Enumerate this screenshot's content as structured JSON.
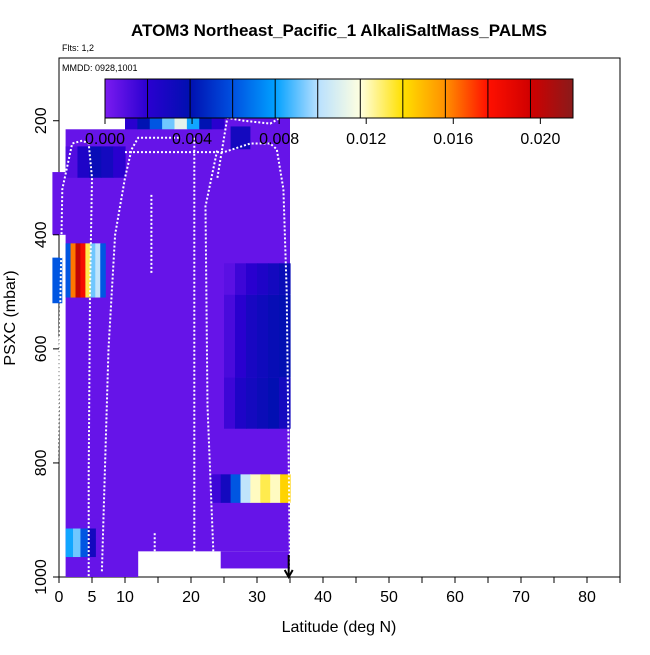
{
  "chart_data": {
    "type": "heatmap",
    "title": "ATOM3 Northeast_Pacific_1 AlkaliSaltMass_PALMS",
    "flights_label": "Flts: 1,2",
    "mmdd_label": "MMDD: 0928,1001",
    "xlabel": "Latitude (deg N)",
    "ylabel": "PSXC (mbar)",
    "xlim": [
      0,
      85
    ],
    "ylim": [
      1000,
      90
    ],
    "y_reversed": true,
    "x_ticks": [
      0,
      5,
      10,
      20,
      30,
      40,
      50,
      60,
      70,
      80
    ],
    "x_ticks_unlabeled": [
      15,
      25,
      35,
      45,
      55,
      65,
      75,
      85
    ],
    "y_ticks": [
      200,
      400,
      600,
      800,
      1000
    ],
    "colorbar": {
      "min": 0.0,
      "max": 0.0215,
      "ticks": [
        0.004,
        0.008,
        0.012,
        0.016,
        0.02
      ],
      "tick_labels": [
        "0.000",
        "0.004",
        "0.008",
        "0.012",
        "0.016",
        "0.020"
      ],
      "tick_values": [
        0.0,
        0.004,
        0.008,
        0.012,
        0.016,
        0.02
      ],
      "stops": [
        "#7b1bf0",
        "#2a00d0",
        "#0010b0",
        "#0050e0",
        "#00a0ff",
        "#b8e0ff",
        "#ffffe0",
        "#ffe000",
        "#ff9000",
        "#ff1000",
        "#d00000",
        "#8a1a1a"
      ]
    },
    "background_value": 0.0005,
    "cells": [
      {
        "lat": [
          1,
          12
        ],
        "p": [
          215,
          1000
        ],
        "v": 0.0005
      },
      {
        "lat": [
          10,
          35
        ],
        "p": [
          160,
          955
        ],
        "v": 0.0005
      },
      {
        "lat": [
          -1,
          2
        ],
        "p": [
          290,
          400
        ],
        "v": 0.0005
      },
      {
        "lat": [
          24.5,
          35
        ],
        "p": [
          955,
          985
        ],
        "v": 0.0005
      },
      {
        "lat": [
          10,
          25
        ],
        "p": [
          160,
          215
        ],
        "v": 0.003,
        "gradient": [
          0.002,
          0.004,
          0.006,
          0.009,
          0.011,
          0.008,
          0.004,
          0.002
        ]
      },
      {
        "lat": [
          1,
          10
        ],
        "p": [
          245,
          300
        ],
        "v": 0.0025,
        "gradient": [
          0.001,
          0.0025,
          0.0035,
          0.003,
          0.002
        ]
      },
      {
        "lat": [
          1,
          7
        ],
        "p": [
          415,
          510
        ],
        "v": 0.015,
        "gradient": [
          0.006,
          0.016,
          0.02,
          0.018,
          0.013,
          0.009,
          0.01,
          0.006
        ]
      },
      {
        "lat": [
          25,
          35
        ],
        "p": [
          450,
          505
        ],
        "v": 0.002,
        "gradient": [
          0.0008,
          0.0015,
          0.002,
          0.0025,
          0.003,
          0.0035
        ]
      },
      {
        "lat": [
          25,
          35
        ],
        "p": [
          505,
          650
        ],
        "v": 0.003,
        "gradient": [
          0.0012,
          0.002,
          0.0028,
          0.0032,
          0.0036,
          0.0038
        ]
      },
      {
        "lat": [
          25,
          35
        ],
        "p": [
          650,
          740
        ],
        "v": 0.003,
        "gradient": [
          0.0015,
          0.0025,
          0.003,
          0.0034,
          0.0038,
          0.003
        ]
      },
      {
        "lat": [
          23,
          35
        ],
        "p": [
          820,
          870
        ],
        "v": 0.009,
        "gradient": [
          0.0015,
          0.003,
          0.006,
          0.01,
          0.012,
          0.013,
          0.012,
          0.014
        ]
      },
      {
        "lat": [
          1,
          5.5
        ],
        "p": [
          915,
          965
        ],
        "v": 0.005,
        "gradient": [
          0.008,
          0.009,
          0.006,
          0.003
        ]
      },
      {
        "lat": [
          26,
          29
        ],
        "p": [
          210,
          250
        ],
        "v": 0.003
      },
      {
        "lat": [
          -1,
          0.5
        ],
        "p": [
          440,
          520
        ],
        "v": 0.006
      }
    ],
    "flight_tracks": [
      {
        "points": [
          [
            -0.5,
            995
          ],
          [
            0.5,
            320
          ],
          [
            2,
            240
          ],
          [
            3.5,
            235
          ],
          [
            4.5,
            240
          ],
          [
            5,
            300
          ],
          [
            4.7,
            500
          ],
          [
            4.5,
            820
          ],
          [
            4.5,
            1000
          ]
        ]
      },
      {
        "points": [
          [
            6.5,
            990
          ],
          [
            7.5,
            600
          ],
          [
            8.5,
            400
          ],
          [
            10,
            300
          ],
          [
            11,
            250
          ],
          [
            12,
            230
          ],
          [
            18.5,
            230
          ]
        ]
      },
      {
        "points": [
          [
            14,
            330
          ],
          [
            14,
            470
          ]
        ]
      },
      {
        "points": [
          [
            10,
            255
          ],
          [
            25,
            255
          ],
          [
            29,
            240
          ],
          [
            32,
            240
          ],
          [
            33,
            250
          ],
          [
            34,
            320
          ],
          [
            34.5,
            500
          ],
          [
            35,
            990
          ]
        ]
      },
      {
        "points": [
          [
            24,
            300
          ],
          [
            25.5,
            195
          ],
          [
            28,
            200
          ],
          [
            32,
            205
          ],
          [
            33.5,
            195
          ]
        ]
      },
      {
        "points": [
          [
            20.5,
            230
          ],
          [
            20.5,
            990
          ]
        ]
      },
      {
        "points": [
          [
            23.5,
            990
          ],
          [
            22.5,
            700
          ],
          [
            22.2,
            350
          ],
          [
            24,
            250
          ]
        ]
      },
      {
        "points": [
          [
            14.5,
            990
          ],
          [
            14.5,
            920
          ]
        ]
      },
      {
        "points": [
          [
            0,
            580
          ],
          [
            -0.5,
            995
          ]
        ]
      }
    ],
    "marker": {
      "lat": 34.8,
      "p": 1000,
      "symbol": "down-arrow"
    }
  }
}
